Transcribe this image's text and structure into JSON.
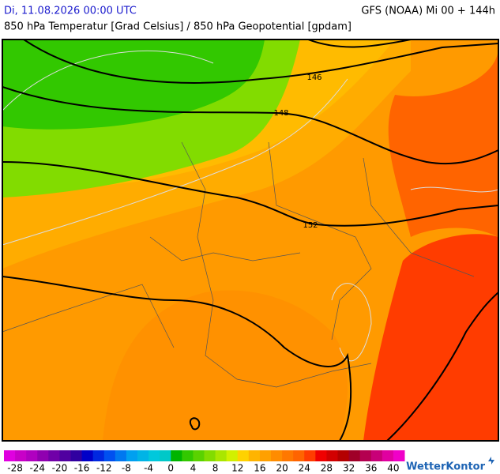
{
  "header": {
    "datetime": "Di, 11.08.2026 00:00 UTC",
    "model": "GFS (NOAA) Mi 00 + 144h",
    "subtitle": "850 hPa Temperatur [Grad Celsius] / 850 hPa Geopotential [gpdam]"
  },
  "map": {
    "contour_labels": [
      "146",
      "148",
      "152"
    ]
  },
  "colorbar": {
    "range": [
      -30,
      42
    ],
    "ticks": [
      -28,
      -24,
      -20,
      -16,
      -12,
      -8,
      -4,
      0,
      4,
      8,
      12,
      16,
      20,
      24,
      28,
      32,
      36,
      40
    ],
    "colors": [
      "#e000e0",
      "#c800c8",
      "#b000c0",
      "#9000b0",
      "#7000a8",
      "#5000a0",
      "#3000a0",
      "#0000c8",
      "#0028e0",
      "#0050f0",
      "#0078f0",
      "#00a0f0",
      "#00b4e6",
      "#00c8dc",
      "#00c8c8",
      "#00b400",
      "#32c800",
      "#5ad200",
      "#82dc00",
      "#aae600",
      "#d2f000",
      "#ffd200",
      "#ffb400",
      "#ffa000",
      "#ff8c00",
      "#ff7800",
      "#ff6400",
      "#ff3c00",
      "#f00000",
      "#d20000",
      "#b40000",
      "#a00028",
      "#b40050",
      "#c80078",
      "#e000a0",
      "#f000c8"
    ]
  },
  "logo": "WetterKontor"
}
